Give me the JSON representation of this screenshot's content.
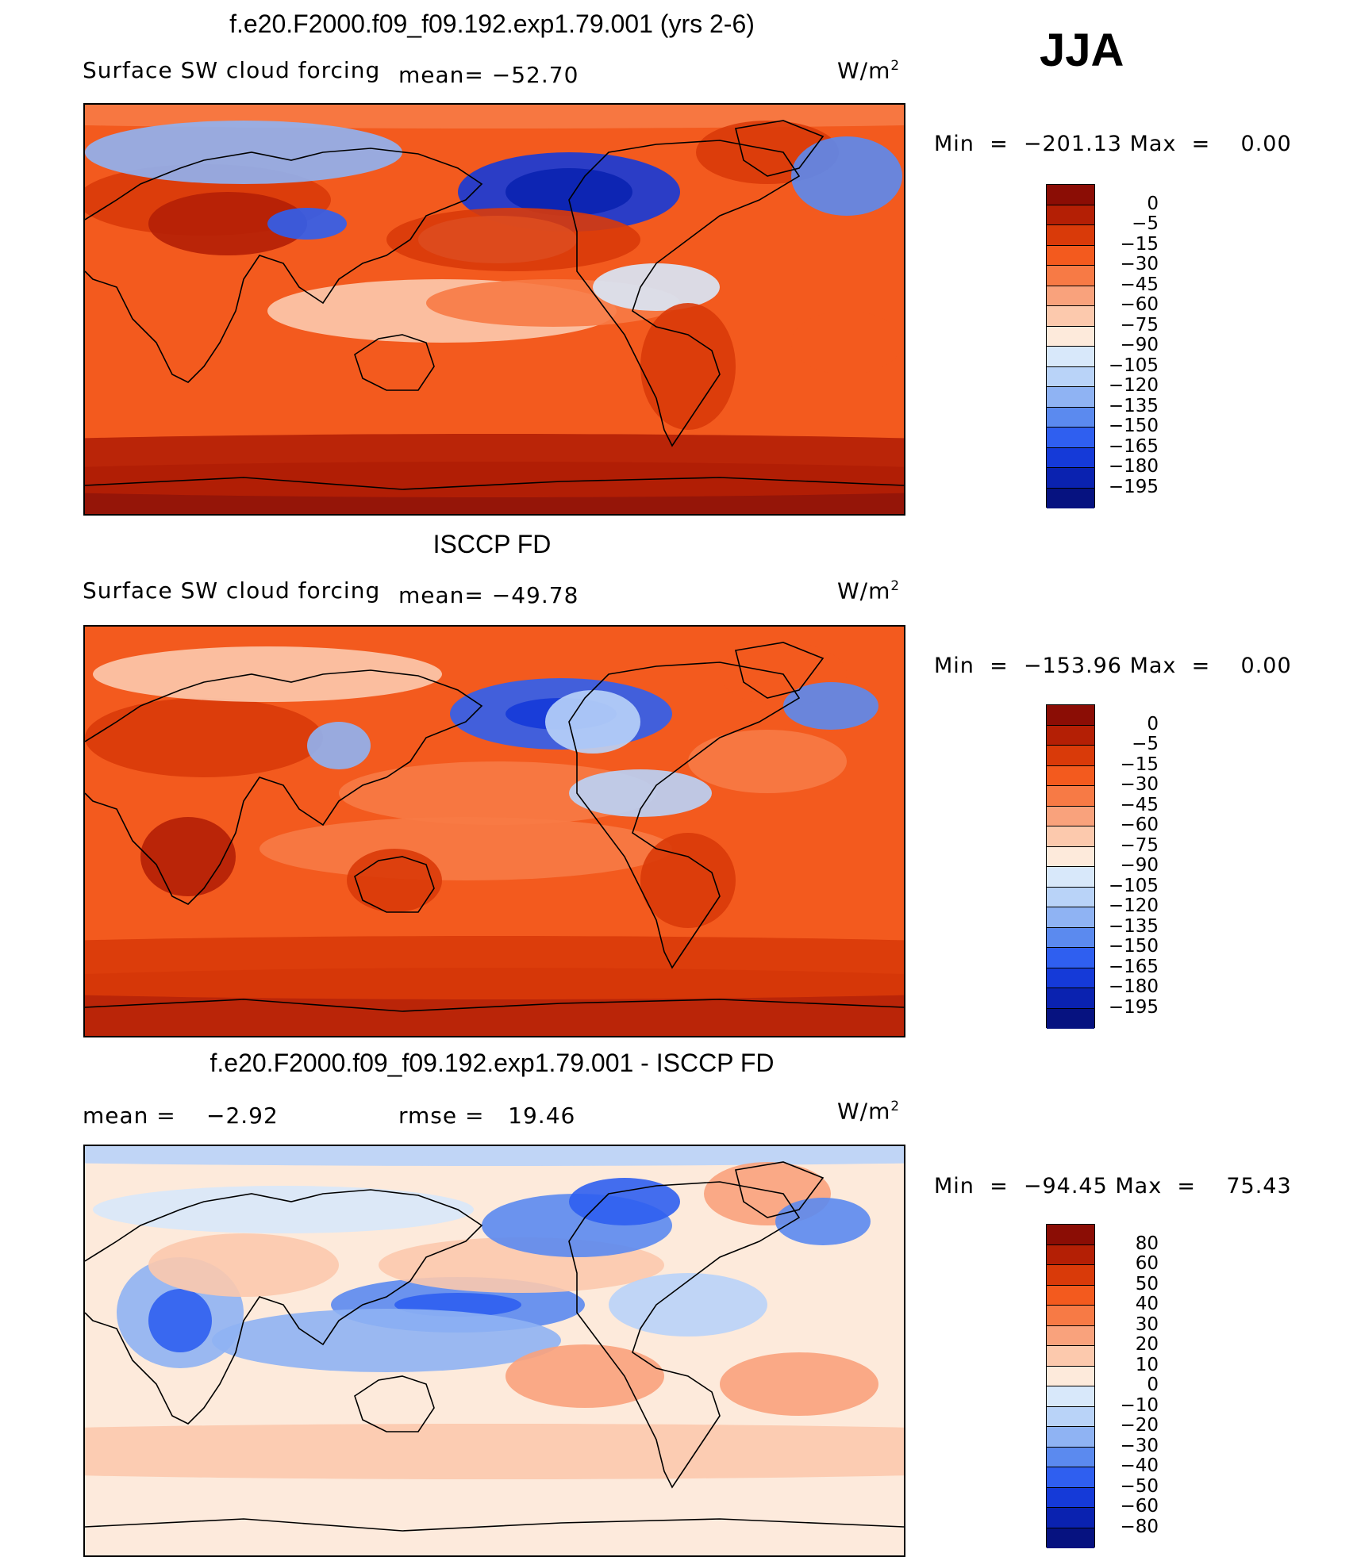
{
  "season": "JJA",
  "units_base": "W/m",
  "units_exp": "2",
  "land_color": "#000000",
  "panels": [
    {
      "id": "model",
      "title": "f.e20.F2000.f09_f09.192.exp1.79.001 (yrs 2-6)",
      "variable": "Surface SW cloud forcing",
      "stat_text": "mean= −52.70",
      "stat2_text": "",
      "min_label": "Min",
      "min_value": "−201.13",
      "max_label": "Max",
      "max_value": "0.00",
      "colorbar": {
        "labels": [
          "0",
          "−5",
          "−15",
          "−30",
          "−45",
          "−60",
          "−75",
          "−90",
          "−105",
          "−120",
          "−135",
          "−150",
          "−165",
          "−180",
          "−195"
        ],
        "colors": [
          "#8b0d05",
          "#b41f05",
          "#d93a09",
          "#f35a1e",
          "#f77a45",
          "#f9a27c",
          "#fcc9ad",
          "#fdeadb",
          "#d8e8fa",
          "#b9d3f8",
          "#8fb3f3",
          "#5b8aef",
          "#2f5ff0",
          "#153ad8",
          "#0a22b0",
          "#061280"
        ]
      }
    },
    {
      "id": "obs",
      "title": "ISCCP FD",
      "variable": "Surface SW cloud forcing",
      "stat_text": "mean= −49.78",
      "stat2_text": "",
      "min_label": "Min",
      "min_value": "−153.96",
      "max_label": "Max",
      "max_value": "0.00",
      "colorbar": {
        "labels": [
          "0",
          "−5",
          "−15",
          "−30",
          "−45",
          "−60",
          "−75",
          "−90",
          "−105",
          "−120",
          "−135",
          "−150",
          "−165",
          "−180",
          "−195"
        ],
        "colors": [
          "#8b0d05",
          "#b41f05",
          "#d93a09",
          "#f35a1e",
          "#f77a45",
          "#f9a27c",
          "#fcc9ad",
          "#fdeadb",
          "#d8e8fa",
          "#b9d3f8",
          "#8fb3f3",
          "#5b8aef",
          "#2f5ff0",
          "#153ad8",
          "#0a22b0",
          "#061280"
        ]
      }
    },
    {
      "id": "diff",
      "title": "f.e20.F2000.f09_f09.192.exp1.79.001 - ISCCP FD",
      "variable": "mean =",
      "stat_text": "−2.92",
      "stat2_text": "rmse =   19.46",
      "min_label": "Min",
      "min_value": "−94.45",
      "max_label": "Max",
      "max_value": "75.43",
      "colorbar": {
        "labels": [
          "80",
          "60",
          "50",
          "40",
          "30",
          "20",
          "10",
          "0",
          "−10",
          "−20",
          "−30",
          "−40",
          "−50",
          "−60",
          "−80"
        ],
        "colors": [
          "#8b0d05",
          "#b41f05",
          "#d93a09",
          "#f35a1e",
          "#f77a45",
          "#f9a27c",
          "#fcc9ad",
          "#fdeadb",
          "#d8e8fa",
          "#b9d3f8",
          "#8fb3f3",
          "#5b8aef",
          "#2f5ff0",
          "#153ad8",
          "#0a22b0",
          "#061280"
        ]
      }
    }
  ],
  "chart_data": [
    {
      "type": "heatmap",
      "title": "f.e20.F2000.f09_f09.192.exp1.79.001 (yrs 2-6)",
      "subtitle": "Surface SW cloud forcing",
      "units": "W/m2",
      "mean": -52.7,
      "min": -201.13,
      "max": 0.0,
      "levels": [
        0,
        -5,
        -15,
        -30,
        -45,
        -60,
        -75,
        -90,
        -105,
        -120,
        -135,
        -150,
        -165,
        -180,
        -195
      ]
    },
    {
      "type": "heatmap",
      "title": "ISCCP FD",
      "subtitle": "Surface SW cloud forcing",
      "units": "W/m2",
      "mean": -49.78,
      "min": -153.96,
      "max": 0.0,
      "levels": [
        0,
        -5,
        -15,
        -30,
        -45,
        -60,
        -75,
        -90,
        -105,
        -120,
        -135,
        -150,
        -165,
        -180,
        -195
      ]
    },
    {
      "type": "heatmap",
      "title": "f.e20.F2000.f09_f09.192.exp1.79.001 - ISCCP FD",
      "units": "W/m2",
      "mean": -2.92,
      "rmse": 19.46,
      "min": -94.45,
      "max": 75.43,
      "levels": [
        80,
        60,
        50,
        40,
        30,
        20,
        10,
        0,
        -10,
        -20,
        -30,
        -40,
        -50,
        -60,
        -80
      ]
    }
  ]
}
